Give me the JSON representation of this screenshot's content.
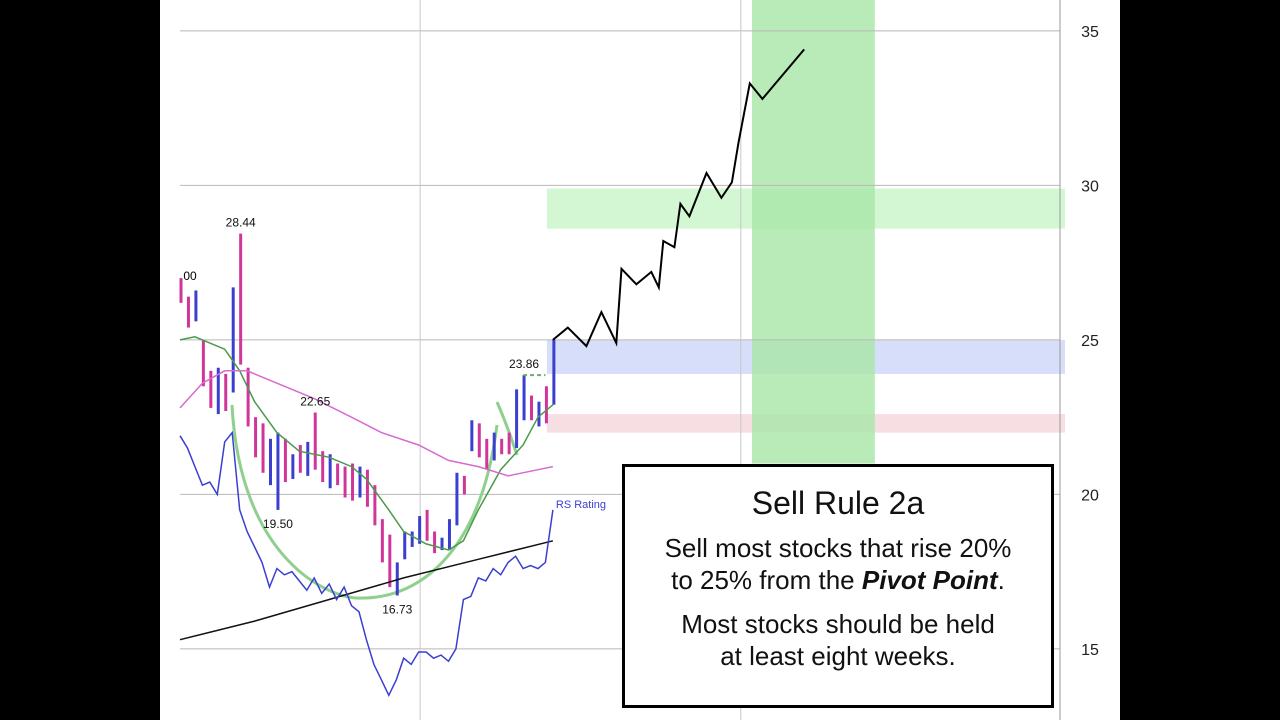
{
  "chart_data": {
    "type": "stock",
    "xlim": [
      0,
      118
    ],
    "ylim": [
      12.7,
      36
    ],
    "yticks": [
      15,
      20,
      25,
      30,
      35
    ],
    "grid": true,
    "xgrid": [
      32.2,
      75.2
    ],
    "bands": [
      {
        "x": [
          49.2,
          118
        ],
        "y": [
          28.6,
          29.9
        ],
        "color": "#c8f5c8"
      },
      {
        "x": [
          49.2,
          118
        ],
        "y": [
          23.9,
          25.0
        ],
        "color": "#cdd6f7"
      },
      {
        "x": [
          49.2,
          118
        ],
        "y": [
          22.0,
          22.6
        ],
        "color": "#f5d6dc"
      },
      {
        "x": [
          76.7,
          92.5
        ],
        "y": [
          21.0,
          36
        ],
        "color": "#a8e6a8"
      }
    ],
    "bars": {
      "high": [
        27.0,
        26.4,
        26.6,
        25.0,
        24.0,
        24.1,
        23.9,
        26.7,
        28.44,
        24.1,
        22.5,
        22.3,
        21.8,
        22.0,
        21.8,
        21.3,
        21.6,
        21.7,
        22.65,
        21.4,
        21.3,
        21.0,
        20.9,
        21.0,
        20.9,
        20.8,
        20.3,
        19.2,
        18.7,
        17.8,
        18.8,
        18.8,
        19.3,
        19.5,
        18.8,
        18.6,
        19.2,
        20.7,
        20.6,
        22.4,
        22.3,
        21.8,
        22.0,
        21.8,
        22.0,
        23.4,
        23.86,
        23.2,
        23.0,
        23.5,
        25.0
      ],
      "low": [
        26.2,
        25.4,
        25.6,
        23.5,
        22.8,
        22.6,
        22.7,
        23.3,
        24.2,
        22.2,
        21.2,
        20.7,
        20.3,
        19.5,
        20.4,
        20.5,
        20.7,
        20.6,
        20.8,
        20.4,
        20.2,
        20.3,
        19.9,
        19.8,
        19.9,
        19.6,
        19.0,
        17.8,
        17.0,
        16.73,
        17.9,
        18.3,
        18.4,
        18.5,
        18.1,
        18.2,
        18.2,
        19.0,
        20.0,
        21.4,
        21.2,
        20.8,
        21.1,
        21.3,
        21.3,
        21.5,
        22.4,
        22.4,
        22.2,
        22.3,
        22.9
      ],
      "colors": [
        "#d0369a",
        "#d0369a",
        "#3a3fd0",
        "#d0369a",
        "#d0369a",
        "#3a3fd0",
        "#d0369a",
        "#3a3fd0",
        "#d0369a",
        "#d0369a",
        "#d0369a",
        "#d0369a",
        "#3a3fd0",
        "#3a3fd0",
        "#d0369a",
        "#3a3fd0",
        "#d0369a",
        "#3a3fd0",
        "#d0369a",
        "#d0369a",
        "#3a3fd0",
        "#d0369a",
        "#d0369a",
        "#d0369a",
        "#3a3fd0",
        "#d0369a",
        "#d0369a",
        "#d0369a",
        "#d0369a",
        "#3a3fd0",
        "#3a3fd0",
        "#3a3fd0",
        "#3a3fd0",
        "#d0369a",
        "#d0369a",
        "#3a3fd0",
        "#3a3fd0",
        "#3a3fd0",
        "#d0369a",
        "#3a3fd0",
        "#d0369a",
        "#d0369a",
        "#3a3fd0",
        "#d0369a",
        "#d0369a",
        "#3a3fd0",
        "#3a3fd0",
        "#d0369a",
        "#3a3fd0",
        "#d0369a",
        "#3a3fd0"
      ]
    },
    "series": [
      {
        "color": "#4a9a4a",
        "x": [
          0,
          2,
          6,
          8,
          10,
          13,
          16,
          20,
          23,
          25,
          28,
          30,
          33,
          36,
          38,
          40,
          43,
          46,
          48,
          50
        ],
        "values": [
          25.0,
          25.1,
          24.7,
          24.0,
          23.0,
          22.0,
          21.4,
          21.2,
          20.9,
          20.5,
          19.5,
          18.8,
          18.4,
          18.2,
          18.5,
          19.5,
          20.8,
          21.6,
          22.5,
          22.9
        ]
      },
      {
        "color": "#d66bd0",
        "x": [
          0,
          3,
          6,
          9,
          13,
          18,
          23,
          27,
          32,
          36,
          40,
          44,
          48,
          50
        ],
        "values": [
          22.8,
          23.6,
          24.0,
          24.0,
          23.6,
          23.1,
          22.5,
          22.0,
          21.6,
          21.1,
          20.9,
          20.6,
          20.8,
          20.9
        ]
      },
      {
        "color": "#111111",
        "x": [
          0,
          10,
          20,
          30,
          40,
          50
        ],
        "values": [
          15.3,
          15.9,
          16.6,
          17.3,
          17.9,
          18.5
        ]
      },
      {
        "name": "RS Rating",
        "color": "#3a3fd0",
        "x": [
          0,
          1,
          2,
          3,
          4,
          5,
          6,
          7,
          8,
          9,
          10,
          11,
          12,
          13,
          14,
          15,
          16,
          17,
          18,
          19,
          20,
          21,
          22,
          23,
          24,
          25,
          26,
          27,
          28,
          29,
          30,
          31,
          32,
          33,
          34,
          35,
          36,
          37,
          38,
          39,
          40,
          41,
          42,
          43,
          44,
          45,
          46,
          47,
          48,
          49,
          50
        ],
        "values": [
          21.9,
          21.5,
          20.9,
          20.3,
          20.4,
          20.0,
          21.7,
          22.0,
          19.5,
          18.8,
          18.3,
          17.8,
          17.0,
          17.6,
          17.4,
          17.5,
          17.2,
          16.9,
          17.3,
          16.8,
          17.1,
          16.6,
          17.0,
          16.4,
          16.2,
          15.3,
          14.5,
          14.0,
          13.5,
          14.0,
          14.7,
          14.5,
          14.9,
          14.9,
          14.7,
          14.8,
          14.6,
          15.0,
          16.6,
          16.7,
          17.3,
          17.2,
          17.6,
          17.4,
          17.8,
          18.0,
          17.6,
          17.7,
          17.6,
          17.8,
          19.5
        ]
      },
      {
        "color": "#000000",
        "x": [
          50,
          52,
          54.5,
          56.5,
          58.5,
          59.2,
          61.2,
          63.2,
          64.2,
          64.8,
          66.3,
          67.1,
          68.3,
          70.6,
          72.6,
          74,
          74.9,
          76.4,
          78.1,
          83.7
        ],
        "values": [
          25.0,
          25.4,
          24.8,
          25.9,
          24.9,
          27.3,
          26.8,
          27.2,
          26.7,
          28.2,
          28.0,
          29.4,
          29.0,
          30.4,
          29.6,
          30.1,
          31.4,
          33.3,
          32.8,
          34.4
        ]
      }
    ],
    "annotations": [
      {
        "x": 8,
        "value": 28.44
      },
      {
        "x": 18,
        "value": 22.65
      },
      {
        "x": 13,
        "value": 19.5,
        "label": "19.50"
      },
      {
        "x": 29,
        "value": 16.73
      },
      {
        "x": 46,
        "value": 23.86
      }
    ],
    "cut_label": ".00",
    "textbox": {
      "title": "Sell Rule 2a",
      "line1": "Sell most stocks that rise 20%",
      "line2a": "to 25% from the ",
      "line2b": "Pivot Point",
      "line2c": ".",
      "line3": "Most stocks should be held",
      "line4": "at least eight weeks."
    }
  }
}
